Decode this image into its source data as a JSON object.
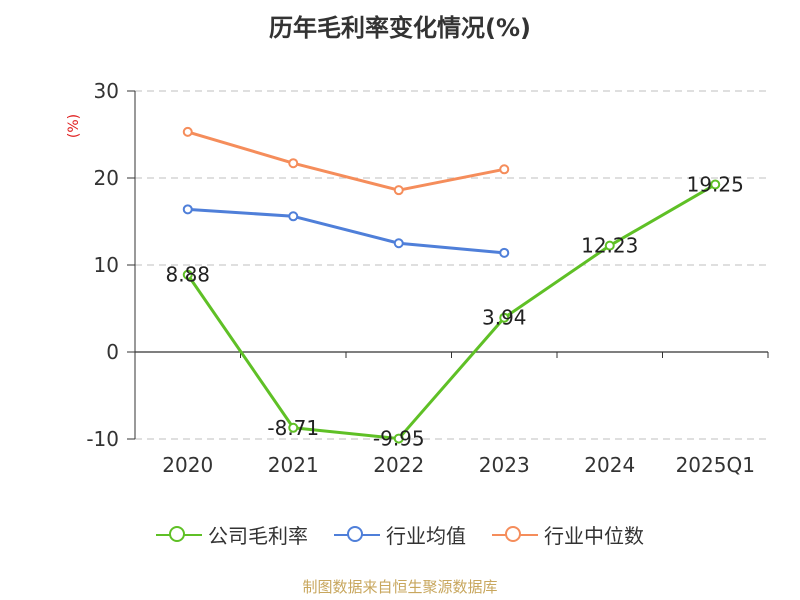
{
  "chart_data": {
    "type": "line",
    "title": "历年毛利率变化情况(%)",
    "ylabel": "(%)",
    "categories": [
      "2020",
      "2021",
      "2022",
      "2023",
      "2024",
      "2025Q1"
    ],
    "ylim": [
      -10,
      30
    ],
    "yticks": [
      -10,
      0,
      10,
      20,
      30
    ],
    "grid": true,
    "legend_position": "bottom",
    "series": [
      {
        "name": "公司毛利率",
        "color": "#5fc026",
        "values": [
          8.88,
          -8.71,
          -9.95,
          3.94,
          12.23,
          19.25
        ],
        "labels": [
          "8.88",
          "-8.71",
          "-9.95",
          "3.94",
          "12.23",
          "19.25"
        ]
      },
      {
        "name": "行业均值",
        "color": "#4f7fd9",
        "values": [
          16.4,
          15.6,
          12.5,
          11.4,
          null,
          null
        ]
      },
      {
        "name": "行业中位数",
        "color": "#f58d5b",
        "values": [
          25.3,
          21.7,
          18.6,
          21.0,
          null,
          null
        ]
      }
    ]
  },
  "footer": {
    "source": "制图数据来自恒生聚源数据库"
  }
}
